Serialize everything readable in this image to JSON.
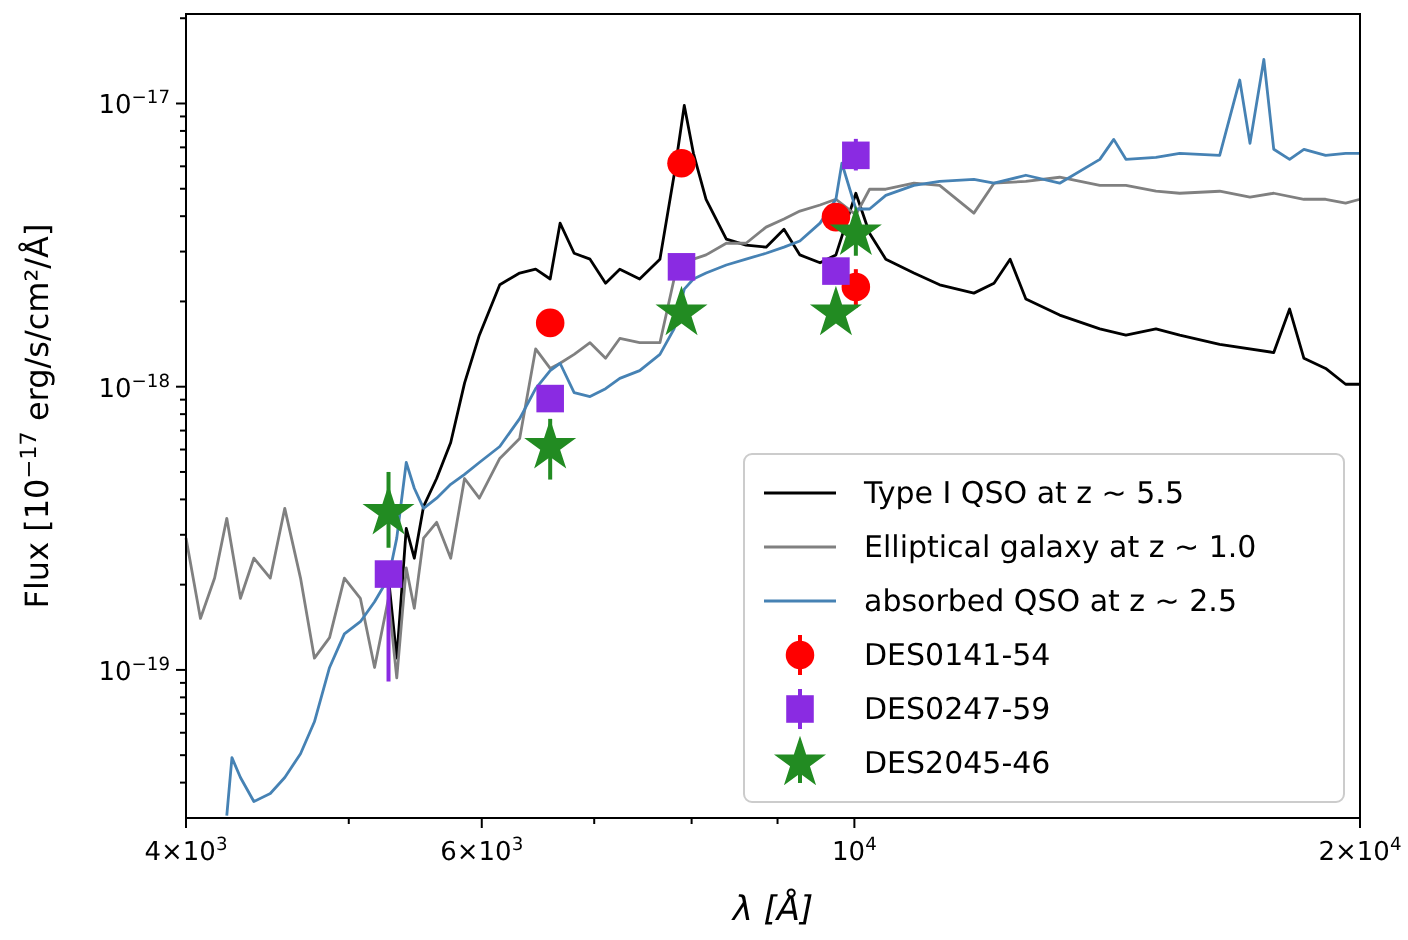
{
  "chart_data": {
    "type": "line",
    "xlabel": "λ [Å]",
    "ylabel": "Flux [10$^{−17}$ erg/s/cm²/Å]",
    "log": "xy",
    "xlim": [
      4000,
      20000
    ],
    "xticks": [
      {
        "value": 4000,
        "label": "4×10$^{3}$"
      },
      {
        "value": 5000,
        "label": null
      },
      {
        "value": 6000,
        "label": "6×10$^{3}$"
      },
      {
        "value": 7000,
        "label": null
      },
      {
        "value": 8000,
        "label": null
      },
      {
        "value": 9000,
        "label": null
      },
      {
        "value": 10000,
        "label": "10$^{4}$"
      },
      {
        "value": 20000,
        "label": "2×10$^{4}$"
      }
    ],
    "ylim": [
      3e-20,
      2.07e-17
    ],
    "yticks": [
      {
        "value": 4e-20,
        "label": null
      },
      {
        "value": 5e-20,
        "label": null
      },
      {
        "value": 6e-20,
        "label": null
      },
      {
        "value": 7e-20,
        "label": null
      },
      {
        "value": 8e-20,
        "label": null
      },
      {
        "value": 9e-20,
        "label": null
      },
      {
        "value": 1e-19,
        "label": "10$^{−19}$"
      },
      {
        "value": 2e-19,
        "label": null
      },
      {
        "value": 3e-19,
        "label": null
      },
      {
        "value": 4e-19,
        "label": null
      },
      {
        "value": 5e-19,
        "label": null
      },
      {
        "value": 6e-19,
        "label": null
      },
      {
        "value": 7e-19,
        "label": null
      },
      {
        "value": 8e-19,
        "label": null
      },
      {
        "value": 9e-19,
        "label": null
      },
      {
        "value": 1e-18,
        "label": "10$^{−18}$"
      },
      {
        "value": 2e-18,
        "label": null
      },
      {
        "value": 3e-18,
        "label": null
      },
      {
        "value": 4e-18,
        "label": null
      },
      {
        "value": 5e-18,
        "label": null
      },
      {
        "value": 6e-18,
        "label": null
      },
      {
        "value": 7e-18,
        "label": null
      },
      {
        "value": 8e-18,
        "label": null
      },
      {
        "value": 9e-18,
        "label": null
      },
      {
        "value": 1e-17,
        "label": "10$^{−17}$"
      },
      {
        "value": 2e-17,
        "label": null
      }
    ],
    "legend": "bottom right",
    "series": [
      {
        "name": "Type I QSO at z ~ 5.5",
        "color": "#000000",
        "x": [
          5280,
          5340,
          5410,
          5470,
          5540,
          5640,
          5750,
          5860,
          5980,
          6150,
          6320,
          6460,
          6590,
          6680,
          6810,
          6960,
          7110,
          7250,
          7450,
          7660,
          7810,
          7920,
          8020,
          8160,
          8390,
          8620,
          8860,
          9080,
          9280,
          9540,
          9750,
          10020,
          10210,
          10440,
          10850,
          11240,
          11780,
          12110,
          12380,
          12650,
          13250,
          14000,
          14510,
          15120,
          15620,
          16500,
          17770,
          18160,
          18520,
          19080,
          19610,
          20000
        ],
        "values": [
          2.11e-19,
          1.1e-19,
          3.16e-19,
          2.48e-19,
          3.78e-19,
          4.74e-19,
          6.35e-19,
          1.03e-18,
          1.52e-18,
          2.29e-18,
          2.52e-18,
          2.6e-18,
          2.4e-18,
          3.78e-18,
          2.96e-18,
          2.82e-18,
          2.32e-18,
          2.6e-18,
          2.4e-18,
          2.82e-18,
          5.58e-18,
          9.84e-18,
          6.67e-18,
          4.59e-18,
          3.32e-18,
          3.16e-18,
          3.11e-18,
          3.6e-18,
          2.92e-18,
          2.74e-18,
          2.92e-18,
          4.82e-18,
          3.48e-18,
          2.82e-18,
          2.52e-18,
          2.29e-18,
          2.14e-18,
          2.32e-18,
          2.82e-18,
          2.04e-18,
          1.79e-18,
          1.6e-18,
          1.52e-18,
          1.6e-18,
          1.52e-18,
          1.41e-18,
          1.32e-18,
          1.88e-18,
          1.26e-18,
          1.16e-18,
          1.02e-18,
          1.02e-18
        ]
      },
      {
        "name": "Elliptical galaxy at z ~ 1.0",
        "color": "#808080",
        "x": [
          4000,
          4080,
          4160,
          4230,
          4310,
          4390,
          4490,
          4580,
          4680,
          4770,
          4870,
          4970,
          5080,
          5180,
          5280,
          5340,
          5410,
          5470,
          5540,
          5640,
          5750,
          5860,
          5980,
          6150,
          6320,
          6460,
          6590,
          6680,
          6810,
          6960,
          7110,
          7250,
          7450,
          7660,
          7810,
          7920,
          8020,
          8160,
          8390,
          8620,
          8860,
          9080,
          9280,
          9540,
          9750,
          10020,
          10210,
          10440,
          10850,
          11240,
          11780,
          12110,
          12650,
          13250,
          14000,
          14510,
          15120,
          15620,
          16500,
          17200,
          17770,
          18520,
          19080,
          19610,
          20000
        ],
        "values": [
          2.92e-19,
          1.52e-19,
          2.11e-19,
          3.43e-19,
          1.79e-19,
          2.48e-19,
          2.11e-19,
          3.72e-19,
          2.11e-19,
          1.1e-19,
          1.3e-19,
          2.11e-19,
          1.79e-19,
          1.02e-19,
          1.79e-19,
          9.37e-20,
          2.29e-19,
          1.65e-19,
          2.92e-19,
          3.32e-19,
          2.48e-19,
          4.74e-19,
          4.04e-19,
          5.58e-19,
          6.56e-19,
          1.36e-18,
          1.16e-18,
          1.21e-18,
          1.3e-18,
          1.43e-18,
          1.26e-18,
          1.48e-18,
          1.43e-18,
          1.43e-18,
          2.4e-18,
          2.6e-18,
          2.82e-18,
          2.92e-18,
          3.21e-18,
          3.21e-18,
          3.66e-18,
          3.91e-18,
          4.17e-18,
          4.38e-18,
          4.59e-18,
          4.04e-18,
          4.98e-18,
          4.98e-18,
          5.23e-18,
          5.14e-18,
          4.1e-18,
          5.23e-18,
          5.31e-18,
          5.49e-18,
          5.14e-18,
          5.14e-18,
          4.9e-18,
          4.82e-18,
          4.9e-18,
          4.67e-18,
          4.82e-18,
          4.59e-18,
          4.59e-18,
          4.45e-18,
          4.59e-18
        ]
      },
      {
        "name": "absorbed QSO at z ~ 2.5",
        "color": "#4682b4",
        "x": [
          4230,
          4260,
          4310,
          4390,
          4490,
          4580,
          4680,
          4770,
          4870,
          4970,
          5080,
          5180,
          5280,
          5340,
          5410,
          5470,
          5540,
          5640,
          5750,
          5860,
          5980,
          6150,
          6320,
          6460,
          6590,
          6680,
          6810,
          6960,
          7110,
          7250,
          7450,
          7660,
          7810,
          7920,
          8020,
          8160,
          8390,
          8620,
          8860,
          9080,
          9280,
          9540,
          9750,
          9830,
          10020,
          10210,
          10440,
          10850,
          11240,
          11780,
          12110,
          12650,
          13250,
          14000,
          14270,
          14510,
          15120,
          15620,
          16500,
          16960,
          17200,
          17530,
          17770,
          18160,
          18520,
          19080,
          19610,
          20000
        ],
        "values": [
          3.06e-20,
          4.9e-20,
          4.17e-20,
          3.43e-20,
          3.66e-20,
          4.17e-20,
          5.06e-20,
          6.56e-20,
          1.02e-19,
          1.34e-19,
          1.48e-19,
          1.74e-19,
          2.11e-19,
          2.92e-19,
          5.4e-19,
          4.38e-19,
          3.72e-19,
          4.04e-19,
          4.52e-19,
          4.9e-19,
          5.4e-19,
          6.15e-19,
          7.71e-19,
          9.84e-19,
          1.14e-18,
          1.21e-18,
          9.53e-19,
          9.23e-19,
          9.84e-19,
          1.07e-18,
          1.14e-18,
          1.3e-18,
          1.6e-18,
          2.21e-18,
          2.4e-18,
          2.52e-18,
          2.69e-18,
          2.82e-18,
          2.96e-18,
          3.11e-18,
          3.27e-18,
          3.78e-18,
          4.59e-18,
          6.15e-18,
          4.24e-18,
          4.24e-18,
          4.74e-18,
          5.14e-18,
          5.31e-18,
          5.4e-18,
          5.23e-18,
          5.58e-18,
          5.23e-18,
          6.35e-18,
          7.47e-18,
          6.35e-18,
          6.45e-18,
          6.67e-18,
          6.56e-18,
          1.21e-17,
          7.23e-18,
          1.43e-17,
          6.89e-18,
          6.35e-18,
          6.89e-18,
          6.56e-18,
          6.67e-18,
          6.67e-18
        ]
      },
      {
        "name": "DES0141-54",
        "type": "scatter",
        "marker": "circle",
        "color": "#ff0000",
        "x": [
          6590,
          7890,
          9750,
          10020
        ],
        "values": [
          1.68e-18,
          6.15e-18,
          3.97e-18,
          2.25e-18
        ],
        "errors": [
          null,
          null,
          null,
          [
            1.9e-18,
            2.6e-18
          ]
        ]
      },
      {
        "name": "DES0247-59",
        "type": "scatter",
        "marker": "square",
        "color": "#8a2be2",
        "x": [
          5280,
          6590,
          7890,
          9750,
          10020
        ],
        "values": [
          2.18e-19,
          9.08e-19,
          2.65e-18,
          2.56e-18,
          6.56e-18
        ],
        "errors": [
          [
            9.1e-20,
            2.4e-19
          ],
          null,
          null,
          null,
          [
            5.8e-18,
            7.5e-18
          ]
        ]
      },
      {
        "name": "DES2045-46",
        "type": "scatter",
        "marker": "star",
        "color": "#228b22",
        "x": [
          5280,
          6590,
          7890,
          9750,
          10020
        ],
        "values": [
          3.6e-19,
          6.15e-19,
          1.82e-18,
          1.82e-18,
          3.49e-18
        ],
        "errors": [
          [
            2.7e-19,
            5e-19
          ],
          [
            4.7e-19,
            7.7e-19
          ],
          null,
          null,
          [
            2.9e-18,
            4.1e-18
          ]
        ]
      }
    ]
  }
}
